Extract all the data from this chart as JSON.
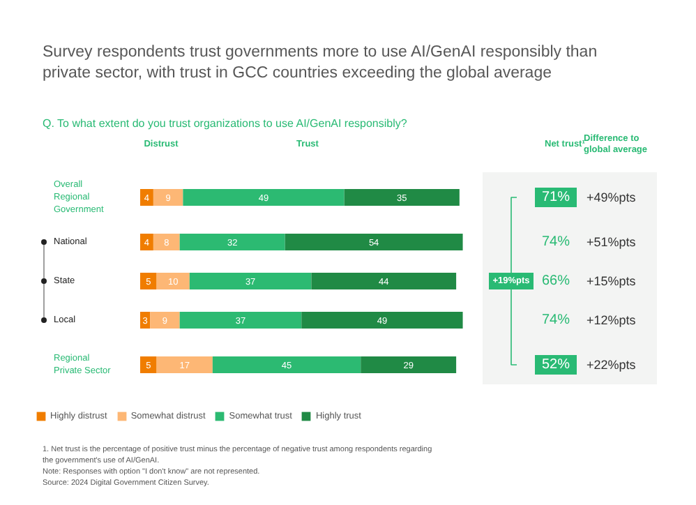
{
  "chart_data": {
    "type": "bar",
    "orientation": "horizontal",
    "stacked": true,
    "title": "Survey respondents trust governments more to use AI/GenAI responsibly than private sector, with trust in GCC countries exceeding the global average",
    "subtitle": "Q. To what extent do you trust organizations to use AI/GenAI responsibly?",
    "categories": [
      "Overall Regional Government",
      "National",
      "State",
      "Local",
      "Regional Private Sector"
    ],
    "series": [
      {
        "name": "Highly distrust",
        "color": "#f07d00",
        "values": [
          4,
          4,
          5,
          3,
          5
        ]
      },
      {
        "name": "Somewhat distrust",
        "color": "#fdb775",
        "values": [
          9,
          8,
          10,
          9,
          17
        ]
      },
      {
        "name": "Somewhat trust",
        "color": "#2cba72",
        "values": [
          49,
          32,
          37,
          37,
          45
        ]
      },
      {
        "name": "Highly trust",
        "color": "#208a45",
        "values": [
          35,
          54,
          44,
          49,
          29
        ]
      }
    ],
    "data_labels": true,
    "legend": "bottom left",
    "annotations": [
      "Distrust",
      "Trust",
      "Net trust¹",
      "Difference to global average",
      "+19%pts",
      "71%",
      "+49%pts",
      "74%",
      "+51%pts",
      "66%",
      "+15%pts",
      "74%",
      "+12%pts",
      "52%",
      "+22%pts",
      "1. Net trust is the percentage of positive trust minus the percentage of negative trust among respondents regarding the government's use of AI/GenAI.",
      "Note: Responses with option \"I don't know\" are not represented.",
      "Source: 2024 Digital Government Citizen Survey."
    ]
  }
}
